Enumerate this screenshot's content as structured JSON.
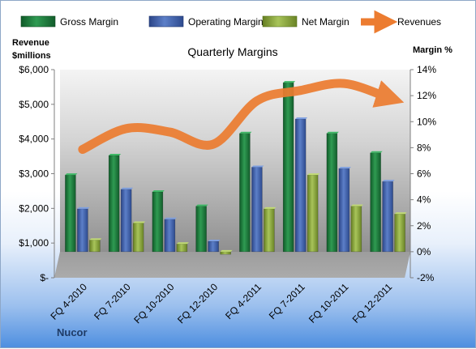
{
  "chart_data": {
    "type": "bar",
    "title": "Quarterly Margins",
    "footer": "Nucor",
    "categories": [
      "FQ 4-2010",
      "FQ 7-2010",
      "FQ 10-2010",
      "FQ 12-2010",
      "FQ 4-2011",
      "FQ 7-2011",
      "FQ 10-2011",
      "FQ 12-2011"
    ],
    "left_axis": {
      "label_line1": "Revenue",
      "label_line2": "$millions",
      "ylim": [
        0,
        6000
      ],
      "ticks": [
        0,
        1000,
        2000,
        3000,
        4000,
        5000,
        6000
      ],
      "tick_labels": [
        "$-",
        "$1,000",
        "$2,000",
        "$3,000",
        "$4,000",
        "$5,000",
        "$6,000"
      ]
    },
    "right_axis": {
      "label": "Margin %",
      "ylim": [
        -2,
        14
      ],
      "ticks": [
        -2,
        0,
        2,
        4,
        6,
        8,
        10,
        12,
        14
      ],
      "tick_labels": [
        "-2%",
        "0%",
        "2%",
        "4%",
        "6%",
        "8%",
        "10%",
        "12%",
        "14%"
      ]
    },
    "series": [
      {
        "name": "Gross Margin",
        "type": "bar",
        "axis": "right",
        "color": "#1e7a3c",
        "values": [
          5.9,
          7.4,
          4.6,
          3.5,
          9.1,
          13.0,
          9.1,
          7.6
        ]
      },
      {
        "name": "Operating Margin",
        "type": "bar",
        "axis": "right",
        "color": "#3b5aa8",
        "values": [
          3.3,
          4.8,
          2.5,
          0.8,
          6.5,
          10.2,
          6.4,
          5.4
        ]
      },
      {
        "name": "Net Margin",
        "type": "bar",
        "axis": "right",
        "color": "#8aaa3a",
        "values": [
          0.9,
          2.2,
          0.6,
          -0.2,
          3.3,
          5.9,
          3.5,
          2.9
        ]
      },
      {
        "name": "Revenues",
        "type": "line",
        "axis": "left",
        "color": "#ec7c30",
        "values": [
          3700,
          4300,
          4200,
          3850,
          5100,
          5400,
          5600,
          5200
        ]
      }
    ],
    "grid": false,
    "legend": "top"
  }
}
